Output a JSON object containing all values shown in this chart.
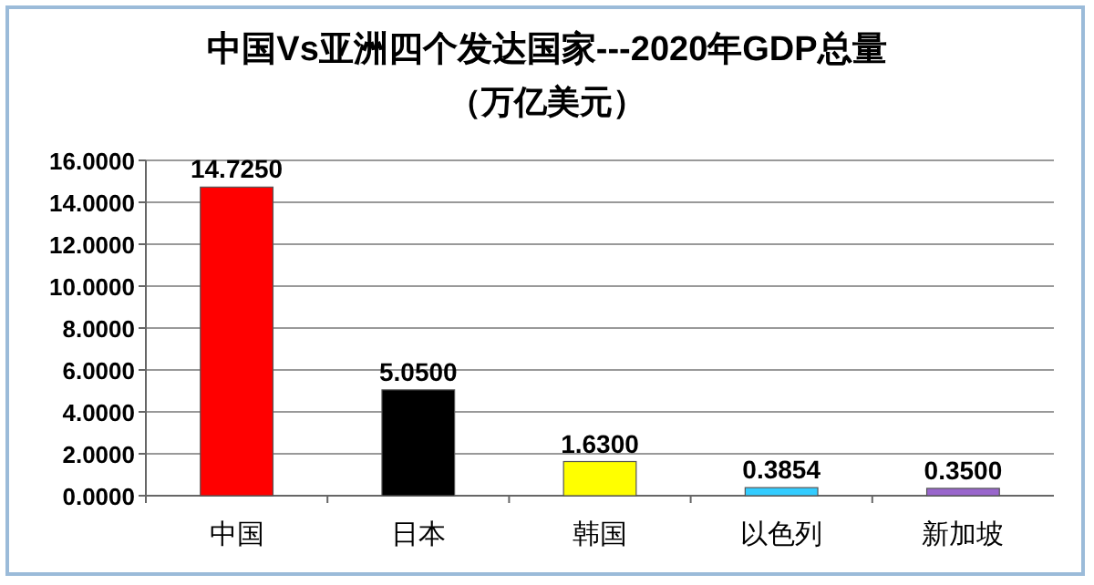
{
  "chart_data": {
    "type": "bar",
    "title": "中国Vs亚洲四个发达国家---2020年GDP总量",
    "subtitle": "（万亿美元）",
    "categories": [
      "中国",
      "日本",
      "韩国",
      "以色列",
      "新加坡"
    ],
    "values": [
      14.725,
      5.05,
      1.63,
      0.3854,
      0.35
    ],
    "value_labels": [
      "14.7250",
      "5.0500",
      "1.6300",
      "0.3854",
      "0.3500"
    ],
    "colors": [
      "#ff0000",
      "#000000",
      "#ffff00",
      "#33ccff",
      "#9966cc"
    ],
    "ylim": [
      0,
      16
    ],
    "yticks": [
      {
        "value": 0,
        "label": "0.0000"
      },
      {
        "value": 2,
        "label": "2.0000"
      },
      {
        "value": 4,
        "label": "4.0000"
      },
      {
        "value": 6,
        "label": "6.0000"
      },
      {
        "value": 8,
        "label": "8.0000"
      },
      {
        "value": 10,
        "label": "10.0000"
      },
      {
        "value": 12,
        "label": "12.0000"
      },
      {
        "value": 14,
        "label": "14.0000"
      },
      {
        "value": 16,
        "label": "16.0000"
      }
    ],
    "grid": "y"
  }
}
